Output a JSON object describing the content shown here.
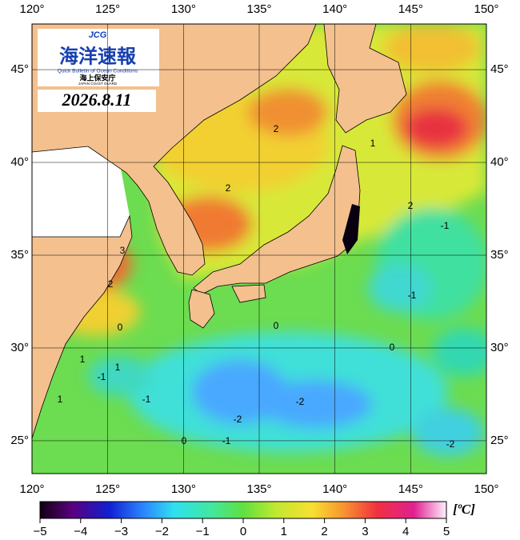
{
  "logo": {
    "badge": "JCG",
    "title": "海洋速報",
    "subtitle": "Quick Bulletin of Ocean Conditions",
    "agency": "海上保安庁",
    "agency_en": "JAPAN COAST GUARD"
  },
  "date": "2026.8.11",
  "map": {
    "xlim": [
      120,
      150
    ],
    "ylim": [
      23.23,
      47.46
    ],
    "xticks": [
      {
        "value": 120,
        "label": "120°"
      },
      {
        "value": 125,
        "label": "125°"
      },
      {
        "value": 130,
        "label": "130°"
      },
      {
        "value": 135,
        "label": "135°"
      },
      {
        "value": 140,
        "label": "140°"
      },
      {
        "value": 145,
        "label": "145°"
      },
      {
        "value": 150,
        "label": "150°"
      }
    ],
    "yticks": [
      {
        "value": 25,
        "label": "25°"
      },
      {
        "value": 30,
        "label": "30°"
      },
      {
        "value": 35,
        "label": "35°"
      },
      {
        "value": 40,
        "label": "40°"
      },
      {
        "value": 45,
        "label": "45°"
      }
    ],
    "contour_labels": [
      "2",
      "2",
      "1",
      "2",
      "-1",
      "-1",
      "0",
      "3",
      "2",
      "0",
      "1",
      "1",
      "-1",
      "1",
      "-1",
      "0",
      "-1",
      "-2",
      "-2",
      "-2",
      "0"
    ]
  },
  "colorbar": {
    "lim": [
      -5,
      5
    ],
    "ticks": [
      {
        "value": -5,
        "label": "−5"
      },
      {
        "value": -4,
        "label": "−4"
      },
      {
        "value": -3,
        "label": "−3"
      },
      {
        "value": -2,
        "label": "−2"
      },
      {
        "value": -1,
        "label": "−1"
      },
      0,
      1,
      2,
      3,
      4,
      5
    ],
    "unit": "[ºC]"
  }
}
